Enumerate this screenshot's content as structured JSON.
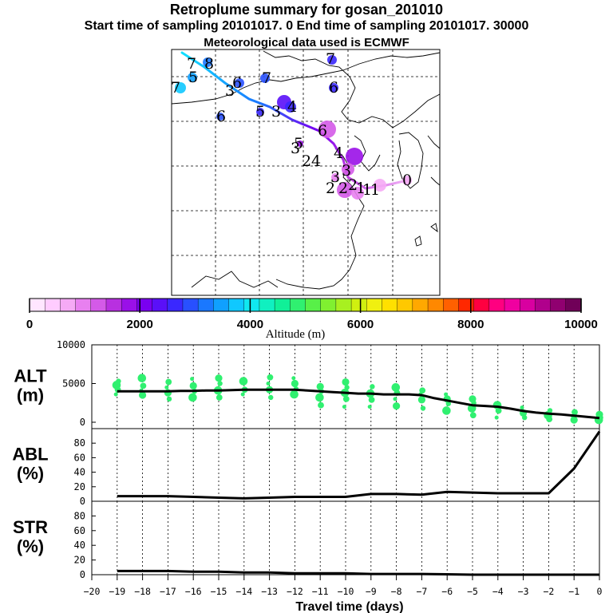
{
  "header": {
    "title": "Retroplume summary for gosan_201010",
    "sampling": "Start time of sampling 20101017.     0     End time of sampling 20101017. 30000",
    "meteo": "Meteorological data used is ECMWF"
  },
  "map": {
    "labels": [
      "7",
      "8",
      "5",
      "7",
      "3",
      "6",
      "7",
      "7",
      "6",
      "6",
      "5",
      "3",
      "4",
      "6",
      "5",
      "3",
      "2",
      "4",
      "4",
      "3",
      "2",
      "3",
      "2",
      "2",
      "1",
      "1",
      "1",
      "0"
    ]
  },
  "colorbar": {
    "title": "Altitude (m)",
    "ticks": [
      "0",
      "2000",
      "4000",
      "6000",
      "8000",
      "10000"
    ],
    "colors": [
      "#ffe6ff",
      "#ffccff",
      "#f5aaf5",
      "#e880f0",
      "#d45ae8",
      "#b830e0",
      "#9a10e8",
      "#7a00f0",
      "#5a10f8",
      "#3a28ff",
      "#2850ff",
      "#1a78ff",
      "#10a0ff",
      "#10c8ff",
      "#10e8f0",
      "#10f0c0",
      "#10f098",
      "#30f070",
      "#58f048",
      "#80f030",
      "#a8f020",
      "#d0f010",
      "#f0f010",
      "#ffe000",
      "#ffc800",
      "#ffa800",
      "#ff8800",
      "#ff6000",
      "#ff2800",
      "#ff0040",
      "#ff0080",
      "#f000a0",
      "#d800a0",
      "#b0008c",
      "#900070",
      "#700058"
    ]
  },
  "chart_data": [
    {
      "type": "line",
      "panel": "ALT",
      "ylabel": "ALT\n(m)",
      "ylim": [
        0,
        10000
      ],
      "yticks": [
        "0",
        "5000",
        "10000"
      ],
      "x": [
        0,
        -0.5,
        -1,
        -1.5,
        -2,
        -2.5,
        -3,
        -3.5,
        -4,
        -4.5,
        -5,
        -5.5,
        -6,
        -6.5,
        -7,
        -7.5,
        -8,
        -8.5,
        -9,
        -9.5,
        -10,
        -10.5,
        -11,
        -11.5,
        -12,
        -12.5,
        -13,
        -13.5,
        -14,
        -14.5,
        -15,
        -15.5,
        -16,
        -16.5,
        -17,
        -17.5,
        -18,
        -18.5,
        -19
      ],
      "values": [
        550,
        700,
        850,
        1000,
        1100,
        1250,
        1450,
        1750,
        2000,
        2100,
        2200,
        2500,
        2800,
        3100,
        3500,
        3600,
        3600,
        3600,
        3700,
        3700,
        3800,
        3900,
        4000,
        4100,
        4200,
        4200,
        4200,
        4200,
        4200,
        4150,
        4100,
        4100,
        4050,
        4050,
        4000,
        4000,
        4000,
        4000,
        4000
      ],
      "scatter_label": "particle altitudes (green dots)",
      "scatter": [
        [
          -19,
          3600
        ],
        [
          -19,
          4200
        ],
        [
          -19,
          4800
        ],
        [
          -19,
          5300
        ],
        [
          -18,
          3500
        ],
        [
          -18,
          4100
        ],
        [
          -18,
          4700
        ],
        [
          -18,
          5700
        ],
        [
          -17,
          3000
        ],
        [
          -17,
          3800
        ],
        [
          -17,
          4500
        ],
        [
          -17,
          5200
        ],
        [
          -16,
          3200
        ],
        [
          -16,
          4000
        ],
        [
          -16,
          4700
        ],
        [
          -16,
          5600
        ],
        [
          -15,
          3200
        ],
        [
          -15,
          4100
        ],
        [
          -15,
          5000
        ],
        [
          -15,
          5700
        ],
        [
          -14,
          3600
        ],
        [
          -14,
          4200
        ],
        [
          -14,
          5300
        ],
        [
          -13,
          3200
        ],
        [
          -13,
          4200
        ],
        [
          -13,
          5000
        ],
        [
          -13,
          5800
        ],
        [
          -12,
          3600
        ],
        [
          -12,
          4300
        ],
        [
          -12,
          5000
        ],
        [
          -12,
          5700
        ],
        [
          -11,
          2200
        ],
        [
          -11,
          3200
        ],
        [
          -11,
          4000
        ],
        [
          -11,
          4600
        ],
        [
          -10,
          2000
        ],
        [
          -10,
          3000
        ],
        [
          -10,
          3800
        ],
        [
          -10,
          4500
        ],
        [
          -10,
          5200
        ],
        [
          -9,
          2000
        ],
        [
          -9,
          2900
        ],
        [
          -9,
          3700
        ],
        [
          -9,
          4600
        ],
        [
          -8,
          2100
        ],
        [
          -8,
          3000
        ],
        [
          -8,
          3800
        ],
        [
          -8,
          4500
        ],
        [
          -7,
          1800
        ],
        [
          -7,
          2900
        ],
        [
          -7,
          3600
        ],
        [
          -7,
          4100
        ],
        [
          -6,
          1500
        ],
        [
          -6,
          2400
        ],
        [
          -6,
          3000
        ],
        [
          -6,
          3600
        ],
        [
          -5,
          900
        ],
        [
          -5,
          1800
        ],
        [
          -5,
          2500
        ],
        [
          -5,
          3000
        ],
        [
          -4,
          600
        ],
        [
          -4,
          1500
        ],
        [
          -4,
          2200
        ],
        [
          -3,
          600
        ],
        [
          -3,
          1200
        ],
        [
          -3,
          1900
        ],
        [
          -2,
          400
        ],
        [
          -2,
          900
        ],
        [
          -2,
          1500
        ],
        [
          -1,
          300
        ],
        [
          -1,
          800
        ],
        [
          -1,
          1300
        ],
        [
          0,
          300
        ],
        [
          0,
          600
        ],
        [
          0,
          1000
        ]
      ]
    },
    {
      "type": "line",
      "panel": "ABL",
      "ylabel": "ABL\n(%)",
      "ylim": [
        0,
        100
      ],
      "yticks": [
        "0",
        "20",
        "40",
        "60",
        "80"
      ],
      "x": [
        0,
        -1,
        -2,
        -3,
        -4,
        -5,
        -6,
        -7,
        -8,
        -9,
        -10,
        -11,
        -12,
        -13,
        -14,
        -15,
        -16,
        -17,
        -18,
        -19
      ],
      "values": [
        96,
        45,
        11,
        11,
        11,
        12,
        13,
        9,
        10,
        10,
        6,
        6,
        6,
        5,
        4,
        5,
        6,
        7,
        7,
        7
      ]
    },
    {
      "type": "line",
      "panel": "STR",
      "ylabel": "STR\n(%)",
      "ylim": [
        0,
        100
      ],
      "yticks": [
        "0",
        "20",
        "40",
        "60",
        "80"
      ],
      "x": [
        0,
        -1,
        -2,
        -3,
        -4,
        -5,
        -6,
        -7,
        -8,
        -9,
        -10,
        -11,
        -12,
        -13,
        -14,
        -15,
        -16,
        -17,
        -18,
        -19
      ],
      "values": [
        0,
        0,
        0,
        0,
        0,
        0,
        0.5,
        1,
        1,
        1,
        2,
        2,
        2,
        3,
        3,
        4,
        4,
        5,
        5,
        5
      ]
    }
  ],
  "xaxis": {
    "label": "Travel time (days)",
    "ticks": [
      "−20",
      "−19",
      "−18",
      "−17",
      "−16",
      "−15",
      "−14",
      "−13",
      "−12",
      "−11",
      "−10",
      "−9",
      "−8",
      "−7",
      "−6",
      "−5",
      "−4",
      "−3",
      "−2",
      "−1",
      "0"
    ]
  }
}
